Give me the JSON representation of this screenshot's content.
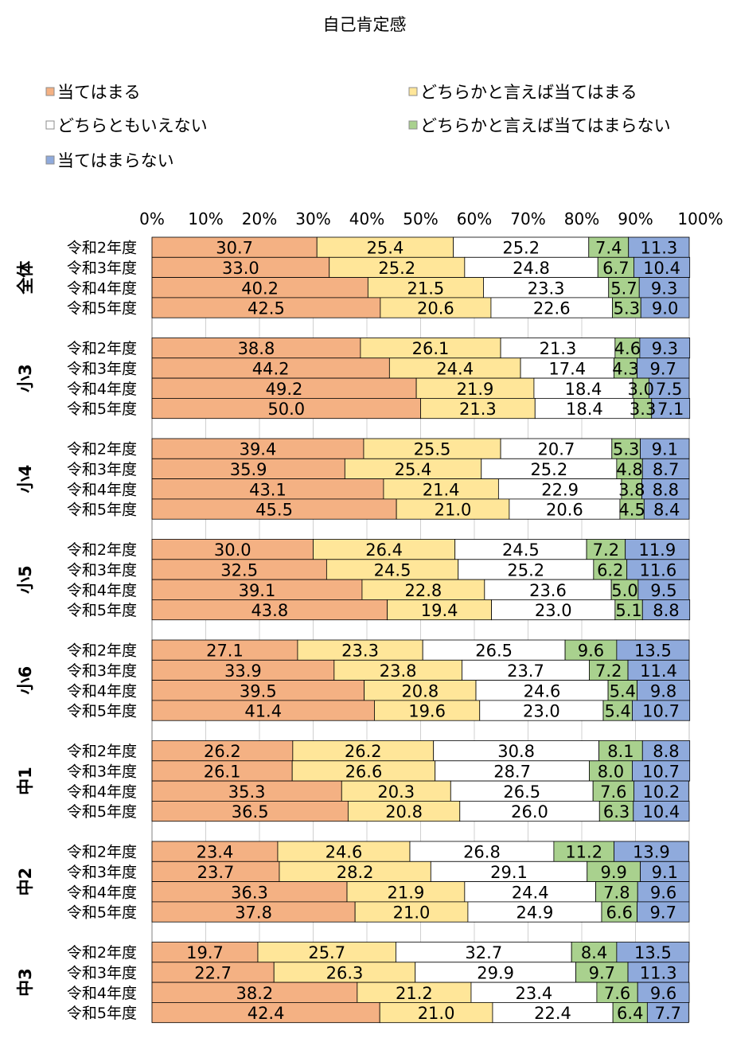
{
  "chart_data": {
    "type": "bar",
    "orientation": "horizontal",
    "stacked": "percent",
    "title": "自己肯定感",
    "legend_position": "top",
    "xlim": [
      0,
      100
    ],
    "x_ticks": [
      "0%",
      "10%",
      "20%",
      "30%",
      "40%",
      "50%",
      "60%",
      "70%",
      "80%",
      "90%",
      "100%"
    ],
    "grid": true,
    "series": [
      {
        "name": "当てはまる",
        "color": "#F4B183"
      },
      {
        "name": "どちらかと言えば当てはまる",
        "color": "#FFE699"
      },
      {
        "name": "どちらともいえない",
        "color": "#FFFFFF"
      },
      {
        "name": "どちらかと言えば当てはまらない",
        "color": "#A9D18E"
      },
      {
        "name": "当てはまらない",
        "color": "#8FAADC"
      }
    ],
    "groups": [
      {
        "name": "全体",
        "rows": [
          {
            "label": "令和2年度",
            "values": [
              30.7,
              25.4,
              25.2,
              7.4,
              11.3
            ]
          },
          {
            "label": "令和3年度",
            "values": [
              33.0,
              25.2,
              24.8,
              6.7,
              10.4
            ]
          },
          {
            "label": "令和4年度",
            "values": [
              40.2,
              21.5,
              23.3,
              5.7,
              9.3
            ]
          },
          {
            "label": "令和5年度",
            "values": [
              42.5,
              20.6,
              22.6,
              5.3,
              9.0
            ]
          }
        ]
      },
      {
        "name": "小3",
        "rows": [
          {
            "label": "令和2年度",
            "values": [
              38.8,
              26.1,
              21.3,
              4.6,
              9.3
            ]
          },
          {
            "label": "令和3年度",
            "values": [
              44.2,
              24.4,
              17.4,
              4.3,
              9.7
            ]
          },
          {
            "label": "令和4年度",
            "values": [
              49.2,
              21.9,
              18.4,
              3.0,
              7.5
            ]
          },
          {
            "label": "令和5年度",
            "values": [
              50.0,
              21.3,
              18.4,
              3.3,
              7.1
            ]
          }
        ]
      },
      {
        "name": "小4",
        "rows": [
          {
            "label": "令和2年度",
            "values": [
              39.4,
              25.5,
              20.7,
              5.3,
              9.1
            ]
          },
          {
            "label": "令和3年度",
            "values": [
              35.9,
              25.4,
              25.2,
              4.8,
              8.7
            ]
          },
          {
            "label": "令和4年度",
            "values": [
              43.1,
              21.4,
              22.9,
              3.8,
              8.8
            ]
          },
          {
            "label": "令和5年度",
            "values": [
              45.5,
              21.0,
              20.6,
              4.5,
              8.4
            ]
          }
        ]
      },
      {
        "name": "小5",
        "rows": [
          {
            "label": "令和2年度",
            "values": [
              30.0,
              26.4,
              24.5,
              7.2,
              11.9
            ]
          },
          {
            "label": "令和3年度",
            "values": [
              32.5,
              24.5,
              25.2,
              6.2,
              11.6
            ]
          },
          {
            "label": "令和4年度",
            "values": [
              39.1,
              22.8,
              23.6,
              5.0,
              9.5
            ]
          },
          {
            "label": "令和5年度",
            "values": [
              43.8,
              19.4,
              23.0,
              5.1,
              8.8
            ]
          }
        ]
      },
      {
        "name": "小6",
        "rows": [
          {
            "label": "令和2年度",
            "values": [
              27.1,
              23.3,
              26.5,
              9.6,
              13.5
            ]
          },
          {
            "label": "令和3年度",
            "values": [
              33.9,
              23.8,
              23.7,
              7.2,
              11.4
            ]
          },
          {
            "label": "令和4年度",
            "values": [
              39.5,
              20.8,
              24.6,
              5.4,
              9.8
            ]
          },
          {
            "label": "令和5年度",
            "values": [
              41.4,
              19.6,
              23.0,
              5.4,
              10.7
            ]
          }
        ]
      },
      {
        "name": "中1",
        "rows": [
          {
            "label": "令和2年度",
            "values": [
              26.2,
              26.2,
              30.8,
              8.1,
              8.8
            ]
          },
          {
            "label": "令和3年度",
            "values": [
              26.1,
              26.6,
              28.7,
              8.0,
              10.7
            ]
          },
          {
            "label": "令和4年度",
            "values": [
              35.3,
              20.3,
              26.5,
              7.6,
              10.2
            ]
          },
          {
            "label": "令和5年度",
            "values": [
              36.5,
              20.8,
              26.0,
              6.3,
              10.4
            ]
          }
        ]
      },
      {
        "name": "中2",
        "rows": [
          {
            "label": "令和2年度",
            "values": [
              23.4,
              24.6,
              26.8,
              11.2,
              13.9
            ]
          },
          {
            "label": "令和3年度",
            "values": [
              23.7,
              28.2,
              29.1,
              9.9,
              9.1
            ]
          },
          {
            "label": "令和4年度",
            "values": [
              36.3,
              21.9,
              24.4,
              7.8,
              9.6
            ]
          },
          {
            "label": "令和5年度",
            "values": [
              37.8,
              21.0,
              24.9,
              6.6,
              9.7
            ]
          }
        ]
      },
      {
        "name": "中3",
        "rows": [
          {
            "label": "令和2年度",
            "values": [
              19.7,
              25.7,
              32.7,
              8.4,
              13.5
            ]
          },
          {
            "label": "令和3年度",
            "values": [
              22.7,
              26.3,
              29.9,
              9.7,
              11.3
            ]
          },
          {
            "label": "令和4年度",
            "values": [
              38.2,
              21.2,
              23.4,
              7.6,
              9.6
            ]
          },
          {
            "label": "令和5年度",
            "values": [
              42.4,
              21.0,
              22.4,
              6.4,
              7.7
            ]
          }
        ]
      }
    ]
  }
}
